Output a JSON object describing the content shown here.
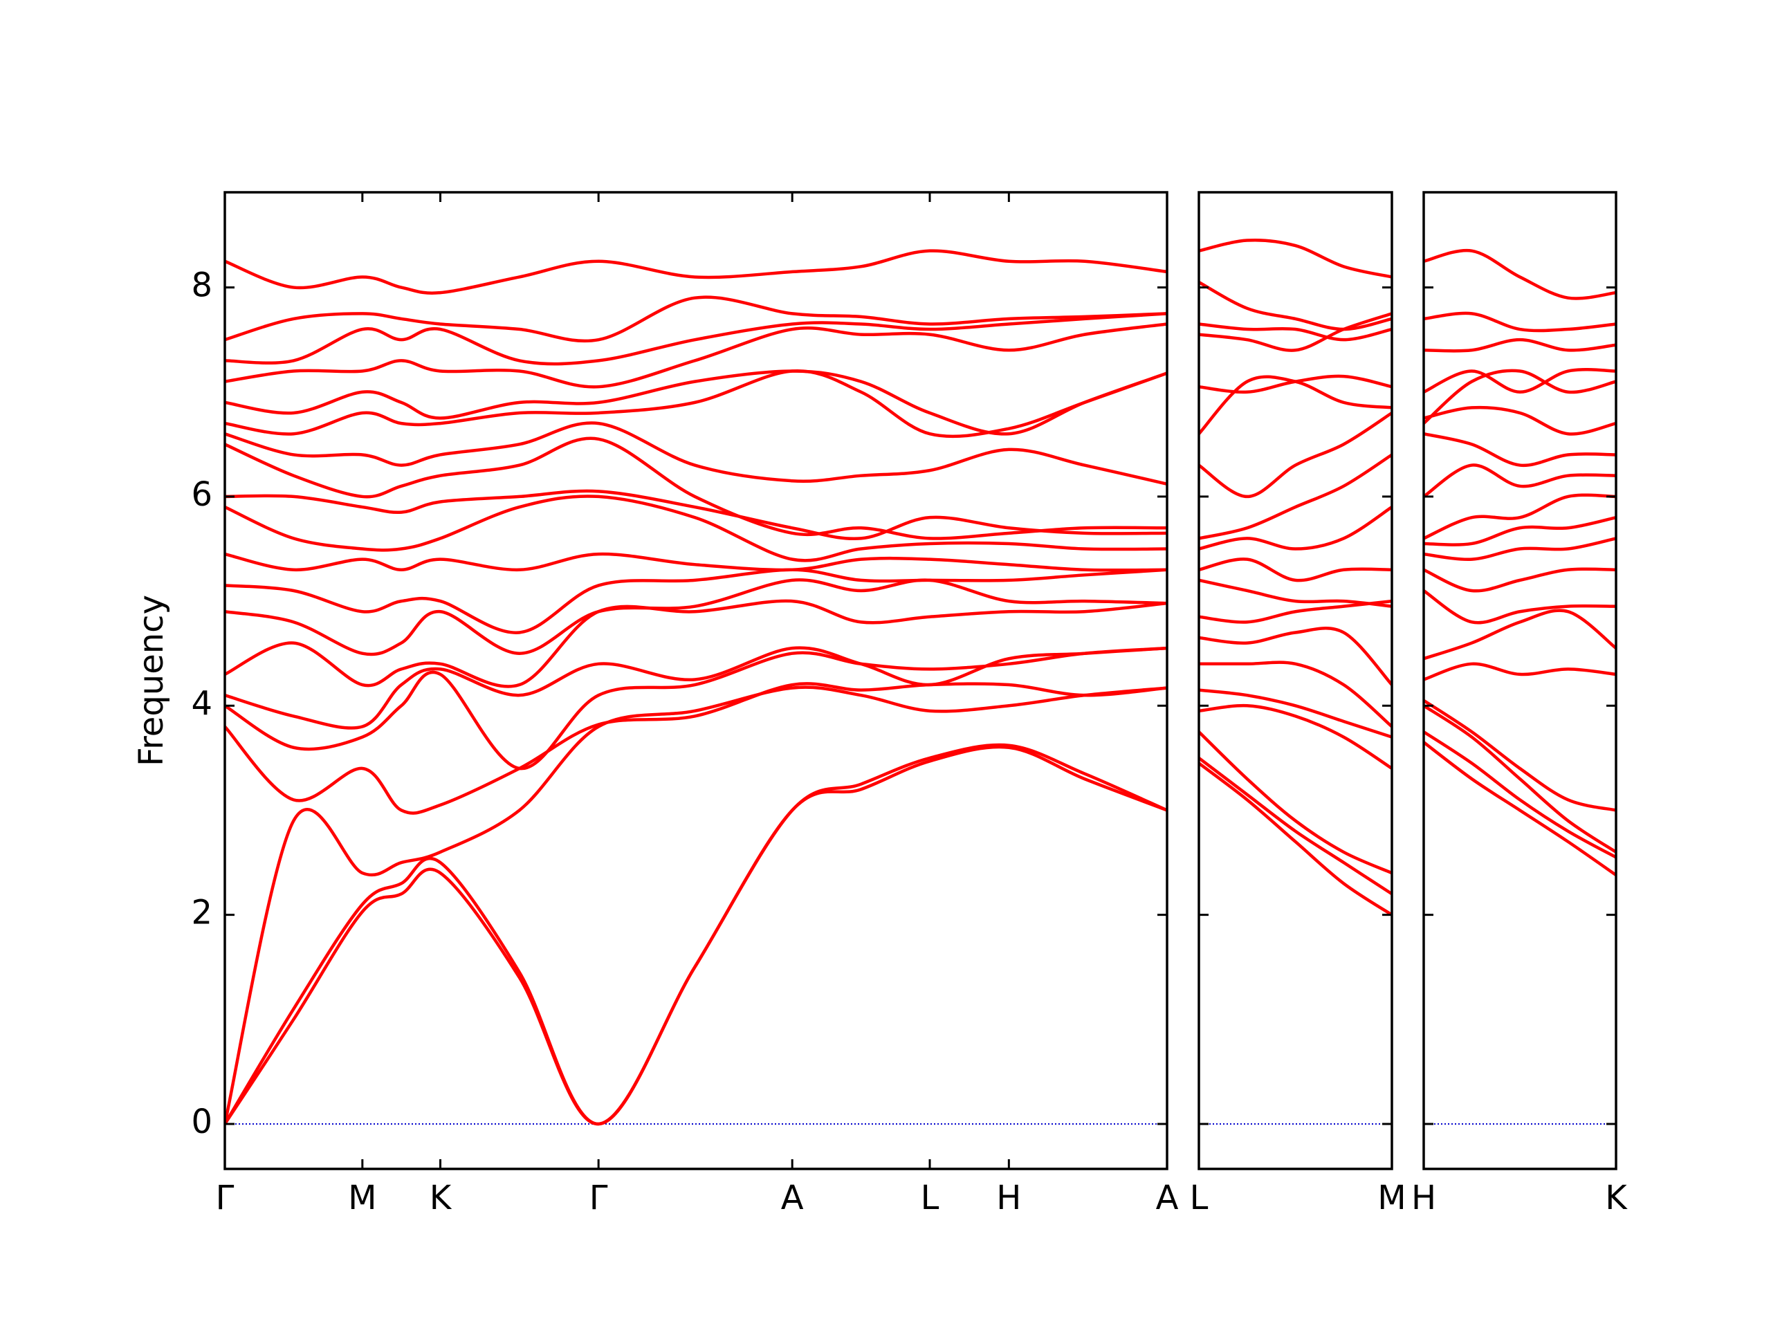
{
  "chart_data": [
    {
      "type": "line",
      "ylabel": "Frequency",
      "color": "#ff0000",
      "ytick_labels": true,
      "reference_line": {
        "y": 0,
        "color": "#0000cc",
        "style": "dotted"
      },
      "xlim": [
        0,
        8.22
      ],
      "ylim": [
        -0.43,
        8.91
      ],
      "xticks": [
        {
          "value": 0,
          "label": "Γ"
        },
        {
          "value": 1.2,
          "label": "M"
        },
        {
          "value": 1.88,
          "label": "K"
        },
        {
          "value": 3.26,
          "label": "Γ"
        },
        {
          "value": 4.95,
          "label": "A"
        },
        {
          "value": 6.15,
          "label": "L"
        },
        {
          "value": 6.84,
          "label": "H"
        },
        {
          "value": 8.22,
          "label": "A"
        }
      ],
      "yticks": [
        0,
        2,
        4,
        6,
        8
      ],
      "x": [
        0,
        0.6,
        1.2,
        1.54,
        1.88,
        2.57,
        3.26,
        4.1,
        4.95,
        5.55,
        6.15,
        6.84,
        7.5,
        8.22
      ],
      "series": [
        {
          "values": [
            0,
            1.0,
            2.03,
            2.2,
            2.4,
            1.4,
            0,
            1.5,
            3.0,
            3.2,
            3.47,
            3.6,
            3.3,
            3.0
          ]
        },
        {
          "values": [
            0,
            1.1,
            2.1,
            2.3,
            2.5,
            1.45,
            0,
            1.5,
            3.0,
            3.25,
            3.5,
            3.62,
            3.35,
            3.0
          ]
        },
        {
          "values": [
            0,
            2.9,
            2.4,
            2.5,
            2.6,
            3.0,
            3.8,
            3.95,
            4.17,
            4.1,
            3.95,
            4.0,
            4.1,
            4.17
          ]
        },
        {
          "values": [
            3.8,
            3.1,
            3.4,
            3.0,
            3.05,
            3.4,
            3.82,
            3.9,
            4.2,
            4.15,
            4.2,
            4.2,
            4.1,
            4.17
          ]
        },
        {
          "values": [
            4.0,
            3.6,
            3.7,
            4.0,
            4.3,
            3.4,
            4.1,
            4.2,
            4.5,
            4.4,
            4.35,
            4.4,
            4.5,
            4.55
          ]
        },
        {
          "values": [
            4.1,
            3.9,
            3.8,
            4.2,
            4.35,
            4.1,
            4.4,
            4.25,
            4.55,
            4.4,
            4.2,
            4.45,
            4.5,
            4.55
          ]
        },
        {
          "values": [
            4.3,
            4.6,
            4.2,
            4.35,
            4.4,
            4.2,
            4.9,
            4.9,
            5.0,
            4.8,
            4.85,
            4.9,
            4.9,
            4.98
          ]
        },
        {
          "values": [
            4.9,
            4.8,
            4.5,
            4.6,
            4.9,
            4.5,
            4.9,
            4.95,
            5.2,
            5.1,
            5.2,
            5.0,
            5.0,
            4.98
          ]
        },
        {
          "values": [
            5.15,
            5.1,
            4.9,
            5.0,
            5.0,
            4.7,
            5.15,
            5.2,
            5.3,
            5.2,
            5.2,
            5.2,
            5.25,
            5.3
          ]
        },
        {
          "values": [
            5.45,
            5.3,
            5.4,
            5.3,
            5.4,
            5.3,
            5.45,
            5.35,
            5.3,
            5.4,
            5.4,
            5.35,
            5.3,
            5.3
          ]
        },
        {
          "values": [
            5.9,
            5.6,
            5.5,
            5.5,
            5.6,
            5.9,
            6.0,
            5.8,
            5.4,
            5.5,
            5.55,
            5.55,
            5.5,
            5.5
          ]
        },
        {
          "values": [
            6.0,
            6.0,
            5.9,
            5.85,
            5.95,
            6.0,
            6.05,
            5.9,
            5.7,
            5.6,
            5.8,
            5.7,
            5.65,
            5.65
          ]
        },
        {
          "values": [
            6.5,
            6.2,
            6.0,
            6.1,
            6.2,
            6.3,
            6.55,
            6.0,
            5.65,
            5.7,
            5.6,
            5.65,
            5.7,
            5.7
          ]
        },
        {
          "values": [
            6.6,
            6.4,
            6.4,
            6.3,
            6.4,
            6.5,
            6.7,
            6.3,
            6.15,
            6.2,
            6.25,
            6.45,
            6.3,
            6.12
          ]
        },
        {
          "values": [
            6.7,
            6.6,
            6.8,
            6.7,
            6.7,
            6.8,
            6.8,
            6.9,
            7.2,
            7.0,
            6.6,
            6.65,
            6.9,
            7.18
          ]
        },
        {
          "values": [
            6.9,
            6.8,
            7.0,
            6.9,
            6.75,
            6.9,
            6.9,
            7.1,
            7.2,
            7.1,
            6.8,
            6.6,
            6.9,
            7.18
          ]
        },
        {
          "values": [
            7.1,
            7.2,
            7.2,
            7.3,
            7.2,
            7.2,
            7.05,
            7.3,
            7.6,
            7.55,
            7.55,
            7.4,
            7.55,
            7.65
          ]
        },
        {
          "values": [
            7.3,
            7.3,
            7.6,
            7.5,
            7.6,
            7.3,
            7.3,
            7.5,
            7.65,
            7.65,
            7.6,
            7.65,
            7.7,
            7.75
          ]
        },
        {
          "values": [
            7.5,
            7.7,
            7.75,
            7.7,
            7.65,
            7.6,
            7.5,
            7.9,
            7.75,
            7.72,
            7.65,
            7.7,
            7.72,
            7.75
          ]
        },
        {
          "values": [
            8.25,
            8.0,
            8.1,
            8.0,
            7.95,
            8.1,
            8.25,
            8.1,
            8.15,
            8.2,
            8.35,
            8.25,
            8.25,
            8.15
          ]
        }
      ]
    },
    {
      "type": "line",
      "color": "#ff0000",
      "ytick_labels": false,
      "reference_line": {
        "y": 0,
        "color": "#0000cc",
        "style": "dotted"
      },
      "xlim": [
        0,
        1.68
      ],
      "ylim": [
        -0.43,
        8.91
      ],
      "xticks": [
        {
          "value": 0,
          "label": "L"
        },
        {
          "value": 1.68,
          "label": "M"
        }
      ],
      "yticks": [
        0,
        2,
        4,
        6,
        8
      ],
      "x": [
        0,
        0.42,
        0.84,
        1.26,
        1.68
      ],
      "series": [
        {
          "values": [
            3.45,
            3.1,
            2.7,
            2.3,
            2.0
          ]
        },
        {
          "values": [
            3.5,
            3.15,
            2.8,
            2.5,
            2.2
          ]
        },
        {
          "values": [
            3.75,
            3.3,
            2.9,
            2.6,
            2.4
          ]
        },
        {
          "values": [
            3.95,
            4.0,
            3.9,
            3.7,
            3.4
          ]
        },
        {
          "values": [
            4.15,
            4.1,
            4.0,
            3.85,
            3.7
          ]
        },
        {
          "values": [
            4.4,
            4.4,
            4.4,
            4.2,
            3.8
          ]
        },
        {
          "values": [
            4.65,
            4.6,
            4.7,
            4.7,
            4.2
          ]
        },
        {
          "values": [
            4.85,
            4.8,
            4.9,
            4.95,
            5.0
          ]
        },
        {
          "values": [
            5.2,
            5.1,
            5.0,
            5.0,
            4.95
          ]
        },
        {
          "values": [
            5.3,
            5.4,
            5.2,
            5.3,
            5.3
          ]
        },
        {
          "values": [
            5.5,
            5.6,
            5.5,
            5.6,
            5.9
          ]
        },
        {
          "values": [
            5.6,
            5.7,
            5.9,
            6.1,
            6.4
          ]
        },
        {
          "values": [
            6.3,
            6.0,
            6.3,
            6.5,
            6.8
          ]
        },
        {
          "values": [
            6.6,
            7.1,
            7.1,
            6.9,
            6.85
          ]
        },
        {
          "values": [
            7.05,
            7.0,
            7.1,
            7.15,
            7.05
          ]
        },
        {
          "values": [
            7.55,
            7.5,
            7.4,
            7.6,
            7.75
          ]
        },
        {
          "values": [
            7.65,
            7.6,
            7.6,
            7.5,
            7.6
          ]
        },
        {
          "values": [
            8.05,
            7.8,
            7.7,
            7.6,
            7.7
          ]
        },
        {
          "values": [
            8.35,
            8.45,
            8.4,
            8.2,
            8.1
          ]
        }
      ]
    },
    {
      "type": "line",
      "color": "#ff0000",
      "ytick_labels": false,
      "reference_line": {
        "y": 0,
        "color": "#0000cc",
        "style": "dotted"
      },
      "xlim": [
        0,
        1.68
      ],
      "ylim": [
        -0.43,
        8.91
      ],
      "xticks": [
        {
          "value": 0,
          "label": "H"
        },
        {
          "value": 1.68,
          "label": "K"
        }
      ],
      "yticks": [
        0,
        2,
        4,
        6,
        8
      ],
      "x": [
        0,
        0.42,
        0.84,
        1.26,
        1.68
      ],
      "series": [
        {
          "values": [
            3.65,
            3.3,
            3.0,
            2.7,
            2.38
          ]
        },
        {
          "values": [
            3.75,
            3.45,
            3.1,
            2.8,
            2.55
          ]
        },
        {
          "values": [
            4.0,
            3.7,
            3.3,
            2.9,
            2.6
          ]
        },
        {
          "values": [
            4.05,
            3.75,
            3.4,
            3.1,
            3.0
          ]
        },
        {
          "values": [
            4.25,
            4.4,
            4.3,
            4.35,
            4.3
          ]
        },
        {
          "values": [
            4.45,
            4.6,
            4.8,
            4.9,
            4.55
          ]
        },
        {
          "values": [
            5.1,
            4.8,
            4.9,
            4.95,
            4.95
          ]
        },
        {
          "values": [
            5.3,
            5.1,
            5.2,
            5.3,
            5.3
          ]
        },
        {
          "values": [
            5.45,
            5.4,
            5.5,
            5.5,
            5.6
          ]
        },
        {
          "values": [
            5.55,
            5.55,
            5.7,
            5.7,
            5.8
          ]
        },
        {
          "values": [
            5.6,
            5.8,
            5.8,
            6.0,
            6.0
          ]
        },
        {
          "values": [
            6.0,
            6.3,
            6.1,
            6.2,
            6.2
          ]
        },
        {
          "values": [
            6.6,
            6.5,
            6.3,
            6.4,
            6.4
          ]
        },
        {
          "values": [
            6.75,
            6.85,
            6.8,
            6.6,
            6.7
          ]
        },
        {
          "values": [
            6.7,
            7.1,
            7.2,
            7.0,
            7.1
          ]
        },
        {
          "values": [
            7.0,
            7.2,
            7.0,
            7.2,
            7.2
          ]
        },
        {
          "values": [
            7.4,
            7.4,
            7.5,
            7.4,
            7.45
          ]
        },
        {
          "values": [
            7.7,
            7.75,
            7.6,
            7.6,
            7.65
          ]
        },
        {
          "values": [
            8.25,
            8.35,
            8.1,
            7.9,
            7.95
          ]
        }
      ]
    }
  ]
}
